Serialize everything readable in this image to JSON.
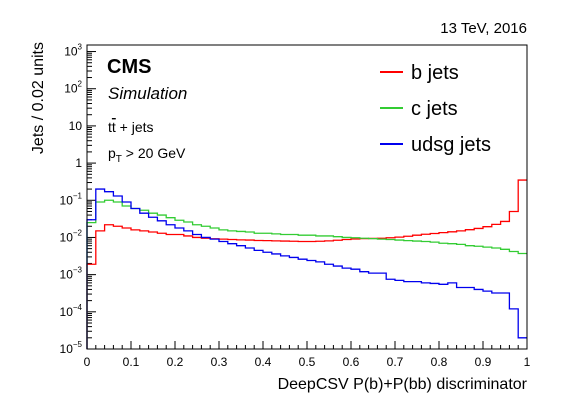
{
  "chart_data": {
    "type": "line",
    "step": true,
    "energy_label": "13 TeV, 2016",
    "experiment": "CMS",
    "sublabel": "Simulation",
    "process": {
      "prefix": "t",
      "bar": "t",
      "suffix": " + jets"
    },
    "cut": {
      "p": "p",
      "sub": "T",
      "rest": " > 20 GeV"
    },
    "xlabel": "DeepCSV P(b)+P(bb) discriminator",
    "ylabel": "Jets / 0.02 units",
    "xlim": [
      0,
      1
    ],
    "ylim": [
      1e-05,
      1500
    ],
    "log_y": true,
    "grid": false,
    "legend_position": "top-right",
    "x_ticks": [
      "0",
      "0.1",
      "0.2",
      "0.3",
      "0.4",
      "0.5",
      "0.6",
      "0.7",
      "0.8",
      "0.9",
      "1"
    ],
    "y_ticks": [
      {
        "base": "10",
        "exp": "−5"
      },
      {
        "base": "10",
        "exp": "−4"
      },
      {
        "base": "10",
        "exp": "−3"
      },
      {
        "base": "10",
        "exp": "−2"
      },
      {
        "base": "10",
        "exp": "−1"
      },
      {
        "base": "1",
        "exp": ""
      },
      {
        "base": "10",
        "exp": ""
      },
      {
        "base": "10",
        "exp": "2"
      },
      {
        "base": "10",
        "exp": "3"
      }
    ],
    "bin_edges_start": 0,
    "bin_width": 0.02,
    "series": [
      {
        "name": "b jets",
        "color": "#ff0000",
        "values": [
          0.0019,
          0.015,
          0.022,
          0.02,
          0.018,
          0.016,
          0.015,
          0.014,
          0.013,
          0.012,
          0.012,
          0.011,
          0.01,
          0.0095,
          0.0092,
          0.009,
          0.0088,
          0.0086,
          0.0085,
          0.0083,
          0.0082,
          0.0081,
          0.008,
          0.0079,
          0.0078,
          0.0078,
          0.0079,
          0.0081,
          0.0084,
          0.0088,
          0.0091,
          0.0093,
          0.0094,
          0.0095,
          0.0098,
          0.0102,
          0.0108,
          0.0115,
          0.0122,
          0.0128,
          0.0135,
          0.0142,
          0.015,
          0.0162,
          0.0175,
          0.0195,
          0.0225,
          0.027,
          0.05,
          0.35
        ]
      },
      {
        "name": "c jets",
        "color": "#33cc33",
        "values": [
          0.025,
          0.09,
          0.1,
          0.09,
          0.07,
          0.06,
          0.054,
          0.045,
          0.04,
          0.034,
          0.029,
          0.026,
          0.022,
          0.02,
          0.018,
          0.016,
          0.015,
          0.0145,
          0.014,
          0.013,
          0.013,
          0.0125,
          0.012,
          0.012,
          0.0115,
          0.0115,
          0.011,
          0.011,
          0.0105,
          0.01,
          0.0098,
          0.0095,
          0.0093,
          0.009,
          0.0088,
          0.0085,
          0.0082,
          0.008,
          0.0078,
          0.0075,
          0.007,
          0.0068,
          0.0065,
          0.006,
          0.0058,
          0.0055,
          0.0052,
          0.0048,
          0.0042,
          0.0037
        ]
      },
      {
        "name": "udsg jets",
        "color": "#0000ee",
        "values": [
          0.03,
          0.2,
          0.17,
          0.13,
          0.09,
          0.06,
          0.045,
          0.035,
          0.028,
          0.022,
          0.018,
          0.015,
          0.012,
          0.01,
          0.009,
          0.0078,
          0.0068,
          0.006,
          0.0052,
          0.0045,
          0.004,
          0.0036,
          0.0032,
          0.0029,
          0.0026,
          0.0024,
          0.0022,
          0.0019,
          0.0017,
          0.0015,
          0.0014,
          0.0012,
          0.0011,
          0.0011,
          0.00075,
          0.0007,
          0.00065,
          0.00065,
          0.0006,
          0.00058,
          0.00055,
          0.0006,
          0.00045,
          0.00045,
          0.0004,
          0.00036,
          0.00032,
          0.00032,
          0.00012,
          2e-05
        ]
      }
    ]
  }
}
